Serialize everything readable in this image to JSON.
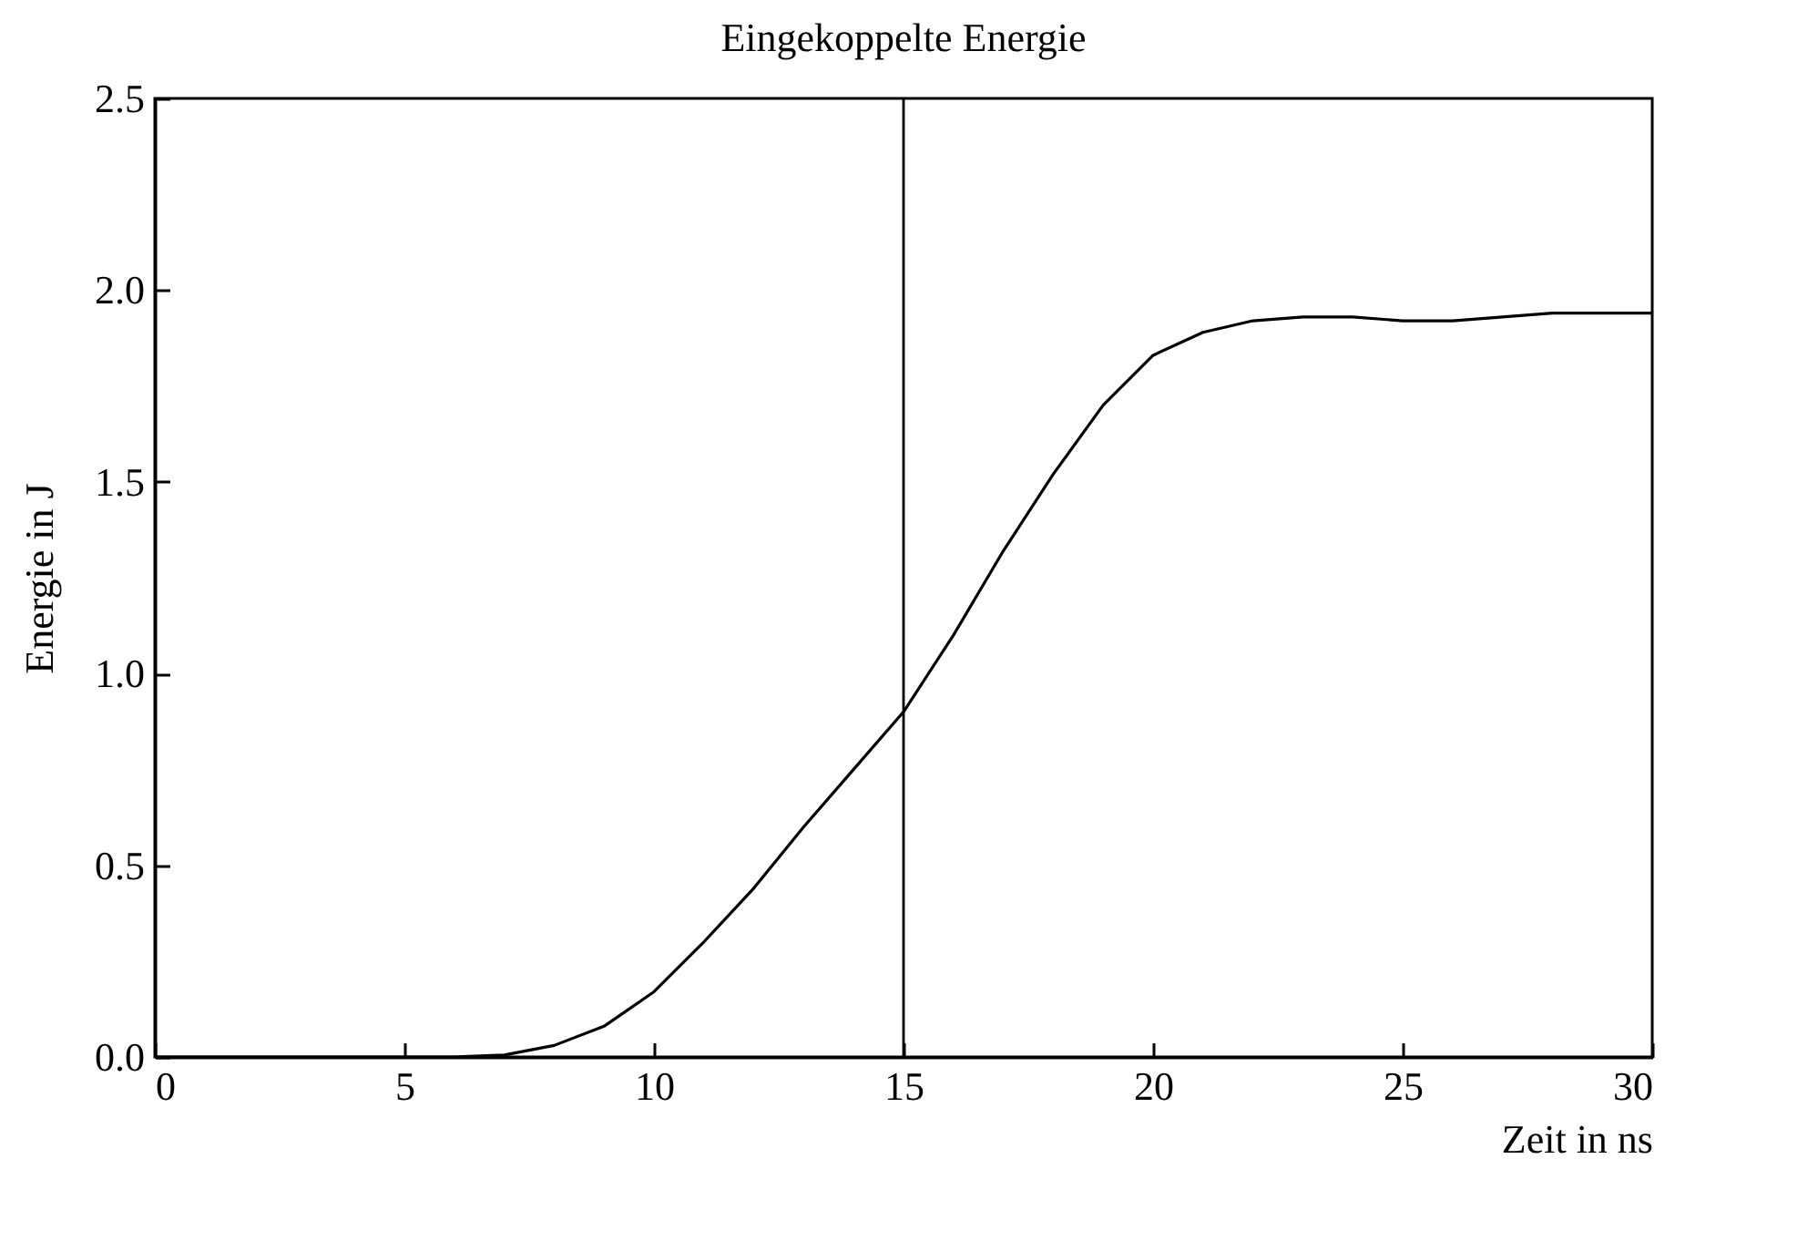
{
  "chart_data": {
    "type": "line",
    "title": "Eingekoppelte Energie",
    "xlabel": "Zeit in ns",
    "ylabel": "Energie in J",
    "x": [
      0,
      6,
      7,
      8,
      9,
      10,
      11,
      12,
      13,
      14,
      15,
      16,
      17,
      18,
      19,
      20,
      21,
      22,
      23,
      24,
      25,
      26,
      27,
      28,
      30
    ],
    "series": [
      {
        "color": "#000000",
        "values": [
          0,
          0,
          0.005,
          0.03,
          0.08,
          0.17,
          0.3,
          0.44,
          0.6,
          0.75,
          0.9,
          1.1,
          1.32,
          1.52,
          1.7,
          1.83,
          1.89,
          1.92,
          1.93,
          1.93,
          1.92,
          1.92,
          1.93,
          1.94,
          1.94
        ]
      }
    ],
    "xlim": [
      0,
      30
    ],
    "xticks": [
      0,
      5,
      10,
      15,
      20,
      25,
      30
    ],
    "ylim": [
      0,
      2.5
    ],
    "yticks": [
      {
        "value": 0,
        "label": "0.0"
      },
      {
        "value": 0.5,
        "label": "0.5"
      },
      {
        "value": 1,
        "label": "1.0"
      },
      {
        "value": 1.5,
        "label": "1.5"
      },
      {
        "value": 2,
        "label": "2.0"
      },
      {
        "value": 2.5,
        "label": "2.5"
      }
    ],
    "ref_lines": [
      {
        "axis": "x",
        "value": 15,
        "color": "#000000"
      }
    ],
    "grid": false,
    "marker": "none",
    "line_style": "solid"
  }
}
